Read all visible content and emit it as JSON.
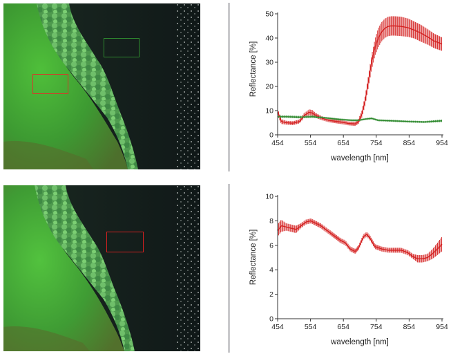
{
  "photos": [
    {
      "scene": "aerial image: vegetated riverbank beside dark water",
      "regions": [
        {
          "label": "vegetation region",
          "color": "#d43a2a"
        },
        {
          "label": "water region",
          "color": "#2f8a2f"
        }
      ]
    },
    {
      "scene": "aerial image: vegetated riverbank beside dark water",
      "regions": [
        {
          "label": "water region",
          "color": "#d42020"
        }
      ]
    }
  ],
  "chart_data": [
    {
      "type": "line",
      "xlabel": "wavelength [nm]",
      "ylabel": "Reflectance [%]",
      "xlim": [
        454,
        954
      ],
      "ylim": [
        0,
        50
      ],
      "xticks": [
        454,
        554,
        654,
        754,
        854,
        954
      ],
      "yticks": [
        0,
        10,
        20,
        30,
        40,
        50
      ],
      "error_bars": true,
      "series": [
        {
          "color": "#d42020",
          "x": [
            454,
            465,
            480,
            500,
            520,
            535,
            550,
            560,
            570,
            590,
            610,
            630,
            650,
            670,
            690,
            700,
            710,
            720,
            730,
            740,
            750,
            760,
            770,
            780,
            790,
            800,
            810,
            830,
            850,
            870,
            890,
            910,
            930,
            954
          ],
          "y": [
            9.5,
            5.5,
            5,
            4.8,
            5.5,
            8,
            9.3,
            9,
            8,
            6.8,
            6,
            5.6,
            5.2,
            4.7,
            4.5,
            5.5,
            8.5,
            14,
            22,
            30,
            36,
            40,
            42.5,
            44,
            44.8,
            45,
            45,
            44.8,
            44.3,
            43.3,
            42,
            40.5,
            38.8,
            37.5
          ],
          "err": [
            1.5,
            1,
            0.8,
            0.8,
            0.8,
            1,
            1.2,
            1.2,
            1,
            0.8,
            0.8,
            0.8,
            0.8,
            0.8,
            0.8,
            1,
            1.5,
            2,
            2.5,
            3,
            3.5,
            4,
            4,
            4,
            4,
            4,
            4,
            4,
            3.8,
            3.5,
            3.5,
            3.2,
            3,
            2.8
          ]
        },
        {
          "color": "#2f8a2f",
          "x": [
            454,
            480,
            520,
            560,
            600,
            640,
            680,
            700,
            720,
            740,
            760,
            800,
            850,
            900,
            954
          ],
          "y": [
            7.5,
            7.5,
            7.3,
            7.5,
            7,
            6.4,
            6,
            6,
            6.5,
            6.8,
            6,
            5.8,
            5.5,
            5.3,
            5.8
          ],
          "err": [
            0.5,
            0.5,
            0.5,
            0.5,
            0.4,
            0.4,
            0.4,
            0.4,
            0.4,
            0.4,
            0.4,
            0.4,
            0.4,
            0.4,
            0.5
          ]
        }
      ]
    },
    {
      "type": "line",
      "xlabel": "wavelength [nm]",
      "ylabel": "Reflectance [%]",
      "xlim": [
        454,
        954
      ],
      "ylim": [
        0,
        10
      ],
      "xticks": [
        454,
        554,
        654,
        754,
        854,
        954
      ],
      "yticks": [
        0,
        2,
        4,
        6,
        8,
        10
      ],
      "error_bars": true,
      "series": [
        {
          "color": "#d42020",
          "x": [
            454,
            465,
            480,
            495,
            510,
            525,
            540,
            555,
            570,
            585,
            600,
            615,
            630,
            645,
            660,
            675,
            690,
            700,
            715,
            725,
            735,
            750,
            770,
            790,
            810,
            830,
            850,
            865,
            880,
            895,
            910,
            925,
            940,
            954
          ],
          "y": [
            7.2,
            7.6,
            7.5,
            7.4,
            7.3,
            7.6,
            7.9,
            8,
            7.8,
            7.6,
            7.3,
            7,
            6.7,
            6.4,
            6.2,
            5.7,
            5.5,
            5.8,
            6.7,
            6.9,
            6.6,
            5.9,
            5.7,
            5.6,
            5.6,
            5.6,
            5.4,
            5.1,
            4.9,
            4.9,
            5,
            5.3,
            5.7,
            6.1
          ],
          "err": [
            0.5,
            0.5,
            0.3,
            0.3,
            0.3,
            0.2,
            0.2,
            0.2,
            0.2,
            0.2,
            0.2,
            0.2,
            0.2,
            0.2,
            0.2,
            0.2,
            0.2,
            0.2,
            0.2,
            0.2,
            0.2,
            0.2,
            0.2,
            0.2,
            0.2,
            0.2,
            0.2,
            0.2,
            0.3,
            0.3,
            0.3,
            0.4,
            0.5,
            0.6
          ]
        }
      ]
    }
  ]
}
